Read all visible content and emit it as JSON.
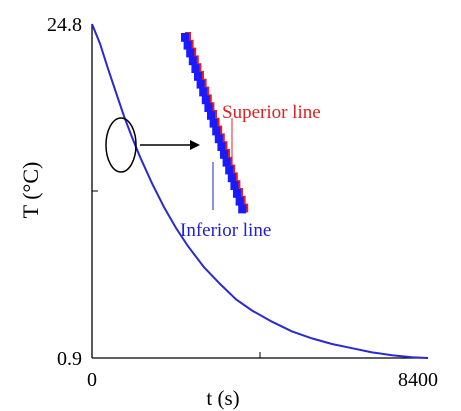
{
  "chart_data": {
    "type": "line",
    "title": "",
    "xlabel": "t (s)",
    "ylabel": "T (°C)",
    "xlim": [
      0,
      8400
    ],
    "ylim": [
      0.9,
      24.8
    ],
    "x_ticks": [
      "0",
      "8400"
    ],
    "y_ticks": [
      "24.8",
      "0.9"
    ],
    "grid": false,
    "series": [
      {
        "name": "",
        "color": "#2a2acf",
        "x": [
          0,
          200,
          400,
          600,
          800,
          1000,
          1200,
          1500,
          1800,
          2100,
          2400,
          2800,
          3200,
          3600,
          4000,
          4500,
          5000,
          5500,
          6000,
          6500,
          7000,
          7500,
          8000,
          8400
        ],
        "y": [
          24.8,
          23.4,
          21.6,
          19.9,
          18.2,
          16.7,
          15.3,
          13.4,
          11.7,
          10.2,
          8.9,
          7.4,
          6.2,
          5.1,
          4.3,
          3.5,
          2.8,
          2.3,
          1.9,
          1.6,
          1.3,
          1.1,
          0.95,
          0.9
        ]
      }
    ],
    "inset": {
      "annotations": [
        {
          "text": "Superior line",
          "color": "#e02020"
        },
        {
          "text": "Inferior line",
          "color": "#2020d0"
        }
      ],
      "superior_color": "#e02020",
      "inferior_color": "#1a1aff"
    }
  }
}
